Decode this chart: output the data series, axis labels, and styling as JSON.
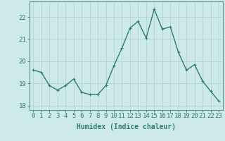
{
  "x": [
    0,
    1,
    2,
    3,
    4,
    5,
    6,
    7,
    8,
    9,
    10,
    11,
    12,
    13,
    14,
    15,
    16,
    17,
    18,
    19,
    20,
    21,
    22,
    23
  ],
  "y": [
    19.6,
    19.5,
    18.9,
    18.7,
    18.9,
    19.2,
    18.6,
    18.5,
    18.5,
    18.9,
    19.8,
    20.6,
    21.5,
    21.8,
    21.05,
    22.35,
    21.45,
    21.55,
    20.4,
    19.6,
    19.85,
    19.1,
    18.65,
    18.2
  ],
  "line_color": "#2e7d6e",
  "marker": "+",
  "marker_size": 3,
  "bg_color": "#cde9e9",
  "grid_color": "#aecece",
  "spine_color": "#5a9090",
  "tick_color": "#2e7d6e",
  "label_color": "#2e7d6e",
  "xlabel": "Humidex (Indice chaleur)",
  "ylim": [
    17.8,
    22.7
  ],
  "yticks": [
    18,
    19,
    20,
    21,
    22
  ],
  "xticks": [
    0,
    1,
    2,
    3,
    4,
    5,
    6,
    7,
    8,
    9,
    10,
    11,
    12,
    13,
    14,
    15,
    16,
    17,
    18,
    19,
    20,
    21,
    22,
    23
  ],
  "xtick_labels": [
    "0",
    "1",
    "2",
    "3",
    "4",
    "5",
    "6",
    "7",
    "8",
    "9",
    "10",
    "11",
    "12",
    "13",
    "14",
    "15",
    "16",
    "17",
    "18",
    "19",
    "20",
    "21",
    "22",
    "23"
  ],
  "xlabel_fontsize": 7,
  "tick_fontsize": 6.5,
  "line_width": 1.0
}
